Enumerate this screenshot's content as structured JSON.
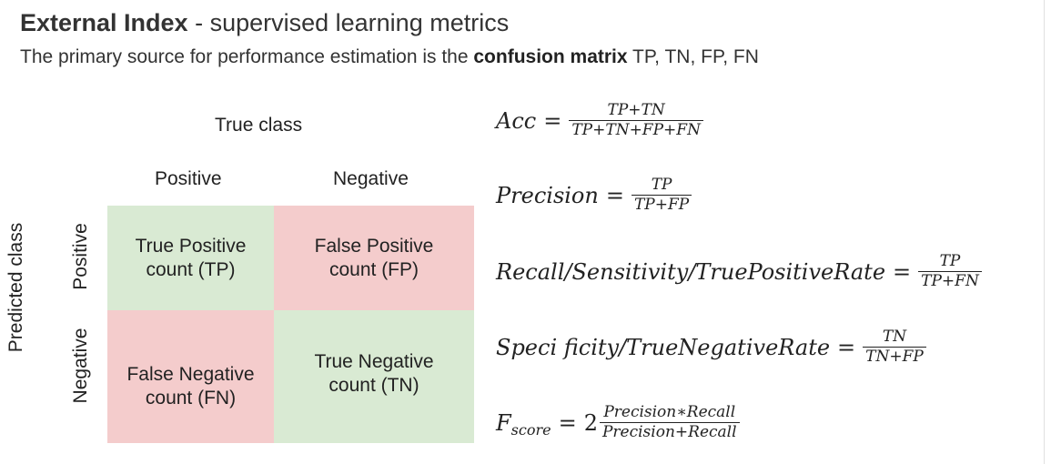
{
  "header": {
    "title_bold": "External Index",
    "title_rest": " - supervised learning metrics",
    "subtitle_pre": "The primary source for performance estimation is the ",
    "subtitle_bold": "confusion matrix",
    "subtitle_post": " TP, TN, FP, FN"
  },
  "matrix": {
    "true_class_label": "True class",
    "predicted_class_label": "Predicted class",
    "col_positive": "Positive",
    "col_negative": "Negative",
    "row_positive": "Positive",
    "row_negative": "Negative",
    "tp": [
      "True Positive",
      "count (TP)"
    ],
    "fp": [
      "False Positive",
      "count (FP)"
    ],
    "fn": [
      "False Negative",
      "count (FN)"
    ],
    "tn": [
      "True Negative",
      "count (TN)"
    ],
    "colors": {
      "correct": "#d9ead3",
      "incorrect": "#f4cccc"
    }
  },
  "formulas": {
    "acc": {
      "lhs": "Acc",
      "num": "TP+TN",
      "den": "TP+TN+FP+FN"
    },
    "precision": {
      "lhs": "Precision",
      "num": "TP",
      "den": "TP+FP"
    },
    "recall": {
      "lhs": "Recall/Sensitivity/TruePositiveRate",
      "num": "TP",
      "den": "TP+FN"
    },
    "specificity": {
      "lhs": "Speci ficity/TrueNegativeRate",
      "num": "TN",
      "den": "TN+FP"
    },
    "fscore": {
      "lhs": "F",
      "sub": "score",
      "coef": "2",
      "num": "Precision∗Recall",
      "den": "Precision+Recall"
    },
    "equals": "="
  }
}
